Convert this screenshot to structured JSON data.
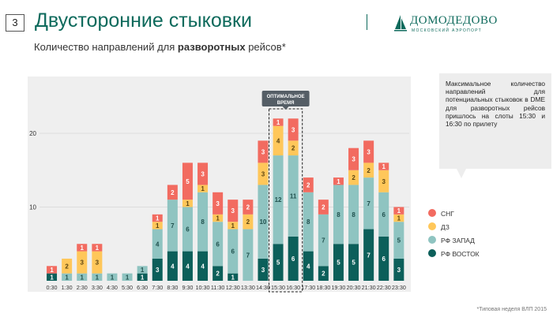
{
  "slide": {
    "number": "3",
    "title": "Двусторонние стыковки"
  },
  "subtitle": {
    "prefix": "Количество направлений для ",
    "bold": "разворотных",
    "suffix": " рейсов*"
  },
  "logo": {
    "name": "ДОМОДЕДОВО",
    "tagline": "МОСКОВСКИЙ АЭРОПОРТ"
  },
  "callout": {
    "text": "Максимальное количество направлений для потенциальных стыковок в DME для разворотных рейсов пришлось на слоты 15:30 и 16:30 по прилету"
  },
  "highlight": {
    "label_line1": "ОПТИМАЛЬНОЕ",
    "label_line2": "ВРЕМЯ"
  },
  "footnote": "*Типовая неделя ВЛП 2015",
  "colors": {
    "rf_vostok": "#0c5f5a",
    "rf_zapad": "#8fc4c1",
    "dz": "#ffc75a",
    "sng": "#f26b60",
    "chart_bg": "#efefef",
    "brand": "#0e6a5c"
  },
  "chart_data": {
    "type": "bar",
    "stacked": true,
    "categories": [
      "0:30",
      "1:30",
      "2:30",
      "3:30",
      "4:30",
      "5:30",
      "6:30",
      "7:30",
      "8:30",
      "9:30",
      "10:30",
      "11:30",
      "12:30",
      "13:30",
      "14:30",
      "15:30",
      "16:30",
      "17:30",
      "18:30",
      "19:30",
      "20:30",
      "21:30",
      "22:30",
      "23:30"
    ],
    "series": [
      {
        "name": "РФ ВОСТОК",
        "color": "#0c5f5a",
        "values": [
          1,
          0,
          0,
          0,
          0,
          0,
          1,
          3,
          4,
          4,
          4,
          2,
          1,
          0,
          3,
          5,
          6,
          4,
          2,
          5,
          5,
          7,
          6,
          3
        ]
      },
      {
        "name": "РФ ЗАПАД",
        "color": "#8fc4c1",
        "values": [
          0,
          1,
          1,
          1,
          1,
          1,
          1,
          4,
          7,
          6,
          8,
          6,
          6,
          7,
          10,
          12,
          11,
          8,
          7,
          8,
          8,
          7,
          6,
          5
        ]
      },
      {
        "name": "ДЗ",
        "color": "#ffc75a",
        "values": [
          0,
          2,
          3,
          3,
          0,
          0,
          0,
          1,
          0,
          1,
          1,
          1,
          1,
          2,
          3,
          4,
          2,
          0,
          0,
          0,
          2,
          2,
          3,
          1
        ]
      },
      {
        "name": "СНГ",
        "color": "#f26b60",
        "values": [
          1,
          0,
          1,
          1,
          0,
          0,
          0,
          1,
          2,
          5,
          3,
          3,
          3,
          2,
          3,
          1,
          3,
          2,
          2,
          1,
          3,
          3,
          1,
          1
        ]
      }
    ],
    "yticks": [
      10,
      20
    ],
    "ylim": [
      0,
      28
    ],
    "highlight_categories": [
      "15:30",
      "16:30"
    ],
    "legend_position": "right"
  }
}
